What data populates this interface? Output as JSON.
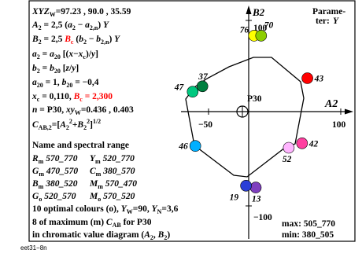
{
  "chart_data": {
    "type": "scatter",
    "title": "",
    "x_label": "A2",
    "y_label": "B2",
    "x_ticks": [
      {
        "value": -50,
        "label": "−50"
      },
      {
        "value": 100,
        "label": "100"
      }
    ],
    "y_ticks": [
      {
        "value": 100,
        "label": "100"
      },
      {
        "value": -100,
        "label": "−100"
      }
    ],
    "xlim": [
      -100,
      120
    ],
    "ylim": [
      -130,
      130
    ],
    "center_label": "P30",
    "param_label": "Parame-",
    "param_label2": "ter:",
    "param_value": "Y",
    "info_lines": [
      "XYZW=97.23 , 90.0 , 35.59",
      "A2 = 2,5 (a2 − a2,n) Y",
      "B2 = 2,5 Bc (b2 − b2,n) Y",
      "a2 = a20 [(x−xc)/y]",
      "b2 = b20 [z/y]",
      "a20 = 1, b20 = −0,4",
      "xc = 0,110, Bc = 2,300",
      "n = P30, xyW=0.436 , 0.403",
      "CAB,2=[A2^2+B2^2]^1/2",
      "Name and spectral range",
      "Rm 570_770   Ym 520_770",
      "Gm 470_570   Cm 380_570",
      "Bm 380_520   Mm 570_470",
      "Go 520_570   Mo 570_520",
      "10 optimal colours (o), YW=90, YN=3,6",
      "8 of maximum (m) CAB for P30",
      "in chromatic value diagram (A2, B2)"
    ],
    "max_label": "max: 505_770",
    "min_label": "min: 380_505",
    "series": [
      {
        "points": [
          {
            "label": "76",
            "x": 6,
            "y": 84,
            "color": "#ffff00"
          },
          {
            "label": "70",
            "x": 14,
            "y": 84,
            "color": "#8ccd00"
          },
          {
            "label": "43",
            "x": 66,
            "y": 37,
            "color": "#ff0000"
          },
          {
            "label": "42",
            "x": 60,
            "y": -35,
            "color": "#ff3fa0"
          },
          {
            "label": "52",
            "x": 45,
            "y": -40,
            "color": "#ffb5ff"
          },
          {
            "label": "13",
            "x": 8,
            "y": -84,
            "color": "#7f3fbf"
          },
          {
            "label": "19",
            "x": -3,
            "y": -82,
            "color": "#2a3fd7"
          },
          {
            "label": "46",
            "x": -60,
            "y": -38,
            "color": "#00afff"
          },
          {
            "label": "47",
            "x": -63,
            "y": 22,
            "color": "#00c87f"
          },
          {
            "label": "37",
            "x": -52,
            "y": 28,
            "color": "#007f3f"
          }
        ]
      }
    ]
  },
  "footer": "eet31−8n"
}
